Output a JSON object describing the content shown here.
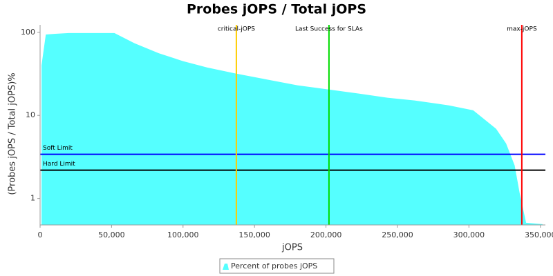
{
  "chart_data": {
    "type": "area",
    "title": "Probes jOPS / Total jOPS",
    "xlabel": "jOPS",
    "ylabel": "(Probes jOPS / Total jOPS)%",
    "x": [
      1000,
      4000,
      10600,
      20000,
      52000,
      66000,
      83000,
      100000,
      117000,
      137000,
      155000,
      180000,
      202000,
      223000,
      243000,
      262000,
      286000,
      303000,
      309000,
      319000,
      326000,
      332000,
      335500,
      340000,
      351500
    ],
    "series": [
      {
        "name": "Percent of probes jOPS",
        "color": "#55ffff",
        "values": [
          40,
          94,
          96,
          98,
          98,
          74,
          56,
          45,
          37.7,
          31.9,
          27.8,
          23,
          20.5,
          18.3,
          16.3,
          15.1,
          13.2,
          11.5,
          9.5,
          6.9,
          4.6,
          2.5,
          1.16,
          0.51,
          0.49
        ]
      }
    ],
    "xlim": [
      0,
      353500
    ],
    "xticks": [
      0,
      {
        "value": 50000,
        "label": "50,000"
      },
      {
        "value": 100000,
        "label": "100,000"
      },
      {
        "value": 150000,
        "label": "150,000"
      },
      {
        "value": 200000,
        "label": "200,000"
      },
      {
        "value": 250000,
        "label": "250,000"
      },
      {
        "value": 300000,
        "label": "300,000"
      },
      {
        "value": 350000,
        "label": "350,000"
      }
    ],
    "ylim": [
      0.48,
      123
    ],
    "yticks": [
      1,
      10,
      100
    ],
    "log_y": true,
    "markers": [
      {
        "label": "critical-jOPS",
        "value": 137300,
        "color": "#ffcc00"
      },
      {
        "label": "Last Success for SLAs",
        "value": 202100,
        "color": "#00dd00"
      },
      {
        "label": "max-jOPS",
        "value": 337000,
        "color": "#ff0000"
      }
    ],
    "thresholds": [
      {
        "label": "Soft Limit",
        "value": 3.4,
        "color": "#0000ff"
      },
      {
        "label": "Hard Limit",
        "value": 2.19,
        "color": "#000000"
      }
    ],
    "legend": "bottom"
  }
}
